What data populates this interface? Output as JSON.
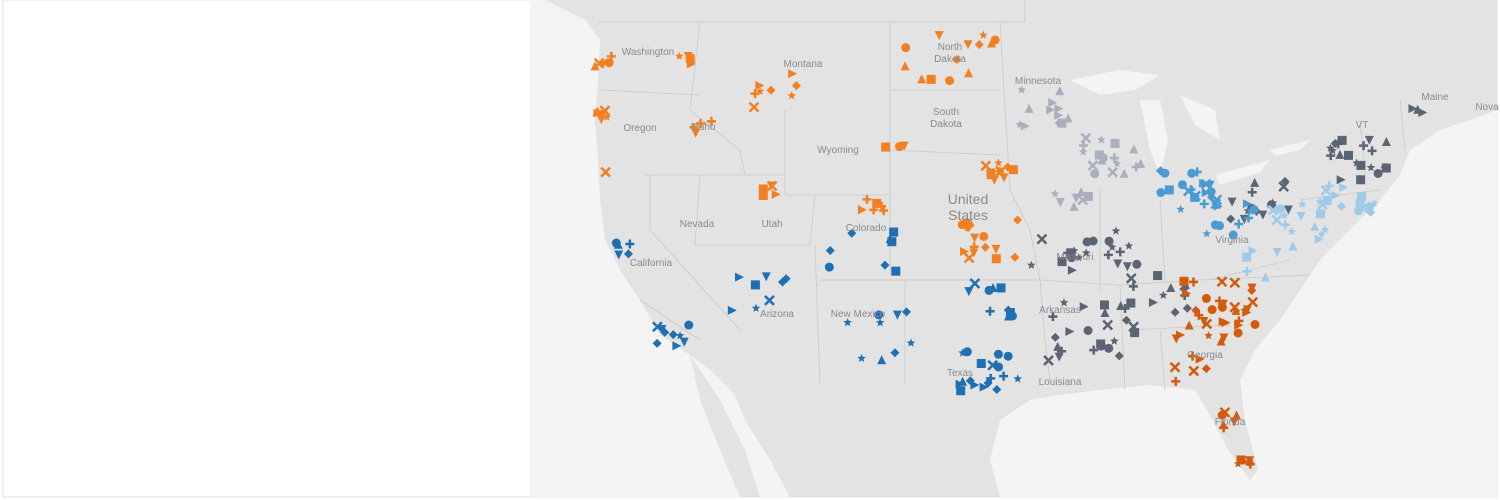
{
  "map": {
    "country": {
      "lines": [
        "United",
        "States"
      ]
    },
    "labels": [
      {
        "lines": [
          "Washington"
        ]
      },
      {
        "lines": [
          "Oregon"
        ]
      },
      {
        "lines": [
          "Idaho"
        ]
      },
      {
        "lines": [
          "Montana"
        ]
      },
      {
        "lines": [
          "North",
          "Dakota"
        ]
      },
      {
        "lines": [
          "South",
          "Dakota"
        ]
      },
      {
        "lines": [
          "Minnesota"
        ]
      },
      {
        "lines": [
          "Wyoming"
        ]
      },
      {
        "lines": [
          "Nevada"
        ]
      },
      {
        "lines": [
          "Utah"
        ]
      },
      {
        "lines": [
          "Colorado"
        ]
      },
      {
        "lines": [
          "California"
        ]
      },
      {
        "lines": [
          "Arizona"
        ]
      },
      {
        "lines": [
          "New Mexico"
        ]
      },
      {
        "lines": [
          "Texas"
        ]
      },
      {
        "lines": [
          "Missouri"
        ]
      },
      {
        "lines": [
          "Arkansas"
        ]
      },
      {
        "lines": [
          "Louisiana"
        ]
      },
      {
        "lines": [
          "Georgia"
        ]
      },
      {
        "lines": [
          "Florida"
        ]
      },
      {
        "lines": [
          "Virginia"
        ]
      },
      {
        "lines": [
          "Maine"
        ]
      },
      {
        "lines": [
          "VT"
        ]
      },
      {
        "lines": [
          "Nova"
        ]
      }
    ]
  }
}
